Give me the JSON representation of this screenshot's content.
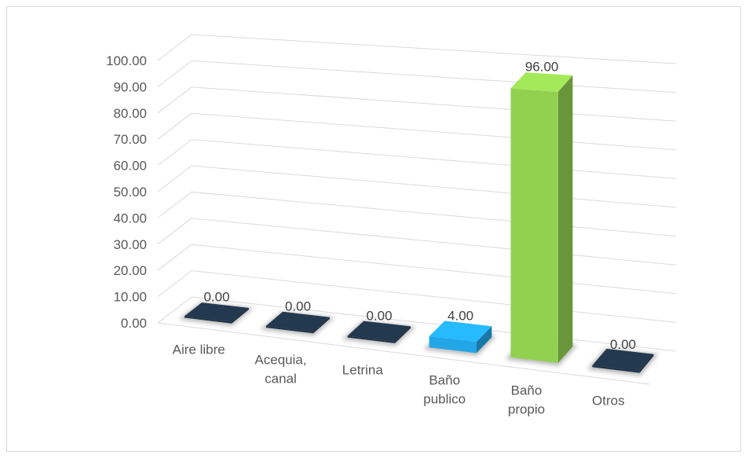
{
  "chart_data": {
    "type": "bar",
    "title": "",
    "xlabel": "",
    "ylabel": "",
    "ylim": [
      0,
      100
    ],
    "yticks": [
      "0.00",
      "10.00",
      "20.00",
      "30.00",
      "40.00",
      "50.00",
      "60.00",
      "70.00",
      "80.00",
      "90.00",
      "100.00"
    ],
    "categories": [
      [
        "Aire libre"
      ],
      [
        "Acequia,",
        "canal"
      ],
      [
        "Letrina"
      ],
      [
        "Baño",
        "publico"
      ],
      [
        "Baño",
        "propio"
      ],
      [
        "Otros"
      ]
    ],
    "values": [
      0,
      0,
      0,
      4,
      96,
      0
    ],
    "data_labels": [
      "0.00",
      "0.00",
      "0.00",
      "4.00",
      "96.00",
      "0.00"
    ],
    "bar_colors": [
      "#1f3347",
      "#1f3347",
      "#1f3347",
      "#22a6e8",
      "#92d050",
      "#1f3347"
    ],
    "grid": true,
    "legend": "none"
  }
}
